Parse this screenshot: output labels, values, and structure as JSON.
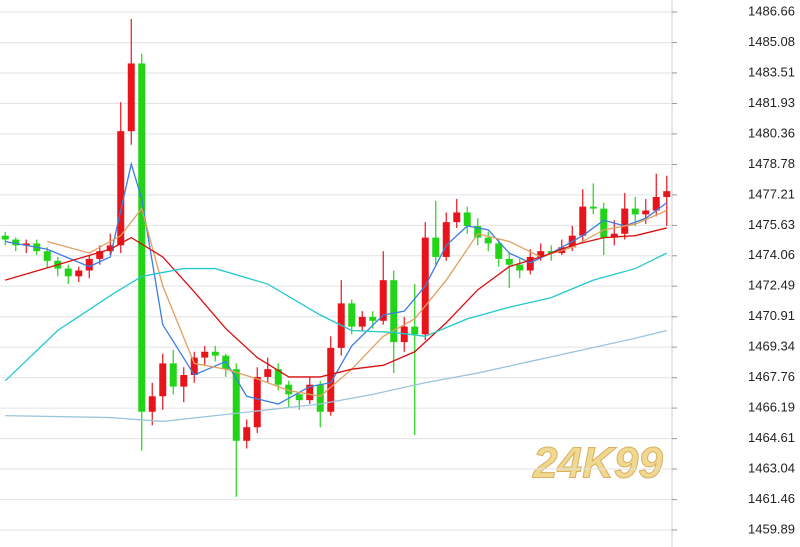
{
  "chart_data": {
    "type": "candlestick",
    "watermark": "24K99",
    "ylim": [
      1459.01,
      1487.28
    ],
    "yticks": [
      1486.66,
      1485.08,
      1483.51,
      1481.93,
      1480.36,
      1478.78,
      1477.21,
      1475.63,
      1474.06,
      1472.49,
      1470.91,
      1469.34,
      1467.76,
      1466.19,
      1464.61,
      1463.04,
      1461.46,
      1459.89
    ],
    "grid": true,
    "up_color": "#e8141c",
    "down_color": "#22d418",
    "open": [
      1475.1,
      1474.9,
      1474.6,
      1474.7,
      1474.3,
      1473.8,
      1473.4,
      1473.0,
      1473.3,
      1473.9,
      1474.3,
      1474.6,
      1480.5,
      1484.0,
      1466.0,
      1466.8,
      1468.5,
      1467.3,
      1467.9,
      1468.8,
      1469.1,
      1468.9,
      1468.2,
      1464.5,
      1465.2,
      1467.8,
      1468.2,
      1467.4,
      1466.9,
      1466.6,
      1467.4,
      1466.0,
      1469.3,
      1471.6,
      1470.4,
      1470.9,
      1470.7,
      1472.8,
      1469.6,
      1470.4,
      1470.0,
      1475.0,
      1474.0,
      1475.8,
      1476.3,
      1475.6,
      1475.0,
      1474.7,
      1473.9,
      1473.6,
      1473.3,
      1474.0,
      1474.3,
      1474.2,
      1474.5,
      1475.1,
      1476.6,
      1476.5,
      1475.0,
      1475.2,
      1476.5,
      1476.2,
      1476.4,
      1477.1
    ],
    "high": [
      1475.3,
      1475.0,
      1474.9,
      1474.9,
      1474.5,
      1474.0,
      1473.6,
      1473.5,
      1474.1,
      1474.6,
      1475.2,
      1482.0,
      1486.3,
      1484.5,
      1467.5,
      1469.0,
      1469.2,
      1468.3,
      1469.1,
      1469.4,
      1469.4,
      1469.0,
      1468.5,
      1465.6,
      1468.3,
      1468.8,
      1468.5,
      1467.6,
      1467.0,
      1467.8,
      1467.6,
      1469.9,
      1472.8,
      1471.8,
      1471.2,
      1471.2,
      1474.3,
      1473.3,
      1470.9,
      1472.6,
      1475.8,
      1476.9,
      1476.3,
      1477.0,
      1476.6,
      1476.0,
      1475.3,
      1474.9,
      1474.2,
      1473.9,
      1474.4,
      1474.7,
      1474.6,
      1474.9,
      1475.6,
      1477.5,
      1477.8,
      1476.8,
      1475.9,
      1477.3,
      1477.1,
      1477.0,
      1478.3,
      1478.2
    ],
    "low": [
      1474.6,
      1474.3,
      1474.2,
      1474.1,
      1473.4,
      1473.0,
      1472.6,
      1472.7,
      1472.9,
      1473.6,
      1474.1,
      1474.2,
      1479.8,
      1464.0,
      1465.3,
      1466.1,
      1466.9,
      1466.5,
      1467.5,
      1468.4,
      1468.6,
      1467.8,
      1461.6,
      1464.1,
      1464.9,
      1467.5,
      1467.1,
      1466.2,
      1466.1,
      1466.4,
      1465.2,
      1465.8,
      1468.9,
      1470.0,
      1470.2,
      1470.3,
      1470.5,
      1468.0,
      1469.1,
      1464.8,
      1469.7,
      1473.6,
      1473.8,
      1475.5,
      1475.2,
      1474.6,
      1474.3,
      1473.5,
      1472.4,
      1472.9,
      1473.1,
      1473.8,
      1473.8,
      1474.1,
      1474.3,
      1474.8,
      1476.2,
      1474.1,
      1474.6,
      1474.9,
      1475.6,
      1475.7,
      1476.1,
      1475.6
    ],
    "close": [
      1474.9,
      1474.6,
      1474.7,
      1474.3,
      1473.8,
      1473.4,
      1473.0,
      1473.3,
      1473.9,
      1474.3,
      1474.6,
      1480.5,
      1484.0,
      1466.0,
      1466.8,
      1468.5,
      1467.3,
      1467.9,
      1468.8,
      1469.1,
      1468.9,
      1468.2,
      1464.5,
      1465.2,
      1467.8,
      1468.2,
      1467.4,
      1466.9,
      1466.6,
      1467.4,
      1466.0,
      1469.3,
      1471.6,
      1470.4,
      1470.9,
      1470.7,
      1472.8,
      1469.6,
      1470.4,
      1470.0,
      1475.0,
      1474.0,
      1475.8,
      1476.3,
      1475.6,
      1475.0,
      1474.7,
      1473.9,
      1473.6,
      1473.3,
      1474.0,
      1474.3,
      1474.2,
      1474.5,
      1475.1,
      1476.6,
      1476.5,
      1475.0,
      1475.2,
      1476.5,
      1476.2,
      1476.4,
      1477.1,
      1477.4
    ],
    "lines": [
      {
        "color": "#3b7de0",
        "x": [
          0,
          4,
          8,
          10,
          12,
          13,
          15,
          18,
          21,
          23,
          26,
          29,
          31,
          33,
          36,
          38,
          40,
          42,
          44,
          46,
          48,
          50,
          52,
          55,
          57,
          59,
          61,
          63
        ],
        "values": [
          1474.8,
          1474.4,
          1473.5,
          1474.0,
          1478.8,
          1477.0,
          1470.5,
          1467.9,
          1468.6,
          1466.8,
          1466.4,
          1467.3,
          1467.5,
          1469.4,
          1471.0,
          1471.2,
          1472.5,
          1474.6,
          1475.6,
          1475.4,
          1474.2,
          1473.7,
          1474.2,
          1475.1,
          1475.9,
          1475.6,
          1476.0,
          1476.8
        ]
      },
      {
        "color": "#e0a060",
        "x": [
          4,
          8,
          11,
          13,
          15,
          18,
          21,
          24,
          27,
          30,
          33,
          36,
          39,
          42,
          45,
          48,
          51,
          54,
          57,
          60,
          63
        ],
        "values": [
          1474.8,
          1474.2,
          1475.1,
          1476.5,
          1472.5,
          1468.5,
          1468.2,
          1467.7,
          1467.1,
          1466.8,
          1468.2,
          1469.9,
          1470.8,
          1472.8,
          1475.2,
          1474.8,
          1474.0,
          1474.5,
          1475.4,
          1475.7,
          1476.4
        ]
      },
      {
        "color": "#d81010",
        "x": [
          0,
          5,
          10,
          12,
          15,
          18,
          21,
          24,
          27,
          30,
          33,
          36,
          39,
          42,
          45,
          48,
          51,
          54,
          57,
          60,
          63
        ],
        "values": [
          1472.8,
          1473.6,
          1474.4,
          1475.0,
          1474.0,
          1472.2,
          1470.3,
          1468.8,
          1467.8,
          1467.8,
          1468.2,
          1468.4,
          1469.1,
          1470.6,
          1472.3,
          1473.5,
          1474.0,
          1474.6,
          1475.0,
          1475.1,
          1475.5
        ]
      },
      {
        "color": "#22c8d0",
        "x": [
          0,
          5,
          10,
          13,
          17,
          20,
          25,
          30,
          33,
          37,
          40,
          44,
          48,
          52,
          56,
          60,
          63
        ],
        "values": [
          1467.6,
          1470.2,
          1472.0,
          1473.0,
          1473.4,
          1473.4,
          1472.6,
          1471.0,
          1470.2,
          1470.1,
          1469.9,
          1470.8,
          1471.4,
          1471.9,
          1472.8,
          1473.4,
          1474.2
        ]
      },
      {
        "color": "#9cc4dc",
        "x": [
          0,
          10,
          15,
          20,
          25,
          30,
          35,
          40,
          45,
          50,
          55,
          60,
          63
        ],
        "values": [
          1465.8,
          1465.7,
          1465.5,
          1465.8,
          1466.1,
          1466.4,
          1466.9,
          1467.5,
          1468.0,
          1468.6,
          1469.2,
          1469.8,
          1470.2
        ]
      }
    ]
  }
}
